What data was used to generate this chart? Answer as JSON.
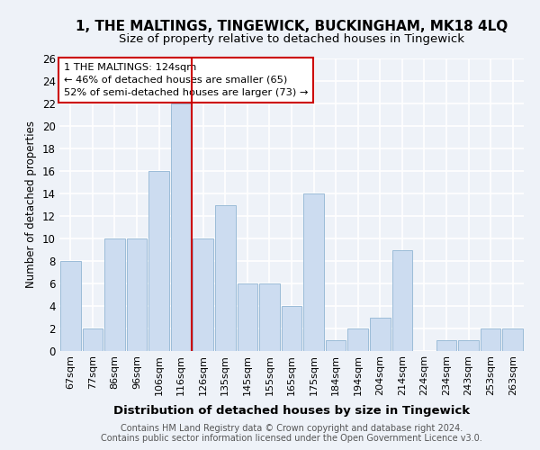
{
  "title": "1, THE MALTINGS, TINGEWICK, BUCKINGHAM, MK18 4LQ",
  "subtitle": "Size of property relative to detached houses in Tingewick",
  "xlabel": "Distribution of detached houses by size in Tingewick",
  "ylabel": "Number of detached properties",
  "categories": [
    "67sqm",
    "77sqm",
    "86sqm",
    "96sqm",
    "106sqm",
    "116sqm",
    "126sqm",
    "135sqm",
    "145sqm",
    "155sqm",
    "165sqm",
    "175sqm",
    "184sqm",
    "194sqm",
    "204sqm",
    "214sqm",
    "224sqm",
    "234sqm",
    "243sqm",
    "253sqm",
    "263sqm"
  ],
  "values": [
    8,
    2,
    10,
    10,
    16,
    22,
    10,
    13,
    6,
    6,
    4,
    14,
    1,
    2,
    3,
    9,
    0,
    1,
    1,
    2,
    2
  ],
  "bar_color": "#ccdcf0",
  "bar_edge_color": "#9bbcd8",
  "highlight_line_color": "#cc0000",
  "annotation_line1": "1 THE MALTINGS: 124sqm",
  "annotation_line2": "← 46% of detached houses are smaller (65)",
  "annotation_line3": "52% of semi-detached houses are larger (73) →",
  "annotation_box_color": "#ffffff",
  "annotation_box_edge_color": "#cc0000",
  "ylim": [
    0,
    26
  ],
  "yticks": [
    0,
    2,
    4,
    6,
    8,
    10,
    12,
    14,
    16,
    18,
    20,
    22,
    24,
    26
  ],
  "footnote1": "Contains HM Land Registry data © Crown copyright and database right 2024.",
  "footnote2": "Contains public sector information licensed under the Open Government Licence v3.0.",
  "background_color": "#eef2f8",
  "grid_color": "#ffffff",
  "title_fontsize": 11,
  "subtitle_fontsize": 9.5
}
